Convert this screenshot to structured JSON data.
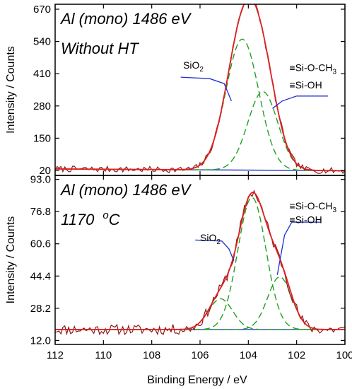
{
  "colors": {
    "raw": "#8b1a1a",
    "fit": "#e02020",
    "component": "#20a020",
    "background": "#2030d0",
    "frame": "#000000"
  },
  "chart_data": [
    {
      "type": "line",
      "name": "top-panel",
      "annotations": [
        "Al (mono) 1486 eV",
        "Without HT"
      ],
      "ylabel": "Intensity / Counts",
      "xlabel": "",
      "xlim": [
        112,
        100
      ],
      "ylim": [
        0,
        690
      ],
      "yticks": [
        20,
        150,
        280,
        410,
        540,
        670
      ],
      "ytick_labels": [
        "20",
        "150",
        "280",
        "410",
        "540",
        "670"
      ],
      "xticks": [
        112,
        110,
        108,
        106,
        104,
        102,
        100
      ],
      "peak_labels": [
        {
          "text_main": "SiO",
          "text_sub": "2",
          "x": 106.7,
          "y": 430
        },
        {
          "text_main": "≡Si-O-CH",
          "text_sub": "3",
          "x": 102.3,
          "y": 420
        },
        {
          "text_main": "≡Si-OH",
          "text_main_only": true,
          "x": 102.3,
          "y": 350
        }
      ],
      "leaders": [
        {
          "label": "SiO2",
          "points": [
            [
              106.8,
              396
            ],
            [
              105.6,
              390
            ],
            [
              105.0,
              370
            ],
            [
              104.7,
              300
            ]
          ]
        },
        {
          "label": "≡Si-OH",
          "points": [
            [
              100.7,
              320
            ],
            [
              102.0,
              320
            ],
            [
              102.6,
              300
            ],
            [
              103.0,
              270
            ]
          ]
        }
      ],
      "baseline": {
        "x": [
          112,
          100
        ],
        "y": [
          26,
          19
        ]
      },
      "components": [
        {
          "center": 104.25,
          "height": 528,
          "sigma": 0.68
        },
        {
          "center": 103.4,
          "height": 317,
          "sigma": 0.62
        }
      ],
      "raw_noise": 12,
      "seed": 7
    },
    {
      "type": "line",
      "name": "bottom-panel",
      "annotations": [
        "Al (mono) 1486 eV",
        "1170  oC"
      ],
      "annotation_parts": {
        "prefix": "1170 ",
        "sup": "o",
        "suffix": "C"
      },
      "ylabel": "Intensity / Counts",
      "xlabel": "Binding Energy / eV",
      "xlim": [
        112,
        100
      ],
      "ylim": [
        10,
        95
      ],
      "yticks": [
        12.0,
        28.2,
        44.4,
        60.6,
        76.8,
        93.0
      ],
      "ytick_labels": [
        "12.0",
        "28.2",
        "44.4",
        "60.6",
        "76.8",
        "93.0"
      ],
      "xticks": [
        112,
        110,
        108,
        106,
        104,
        102,
        100
      ],
      "xtick_labels": [
        "112",
        "110",
        "108",
        "106",
        "104",
        "102",
        "100"
      ],
      "peak_labels": [
        {
          "text_main": "SiO",
          "text_sub": "2",
          "x": 106.0,
          "y": 62
        },
        {
          "text_main": "≡Si-O-CH",
          "text_sub": "3",
          "x": 102.3,
          "y": 78
        },
        {
          "text_main": "≡Si-OH",
          "text_main_only": true,
          "x": 102.3,
          "y": 71
        }
      ],
      "leaders": [
        {
          "label": "SiO2",
          "points": [
            [
              106.2,
              62.5
            ],
            [
              105.1,
              62
            ],
            [
              104.8,
              58
            ],
            [
              104.6,
              52
            ]
          ]
        },
        {
          "label": "≡Si-OH",
          "points": [
            [
              101.0,
              71.5
            ],
            [
              102.2,
              71.5
            ],
            [
              102.5,
              65
            ],
            [
              102.8,
              45
            ]
          ]
        }
      ],
      "baseline": {
        "x": [
          112,
          100
        ],
        "y": [
          17.5,
          17.5
        ]
      },
      "components": [
        {
          "center": 105.15,
          "height": 15.5,
          "sigma": 0.5
        },
        {
          "center": 103.85,
          "height": 66.5,
          "sigma": 0.58
        },
        {
          "center": 102.7,
          "height": 26.5,
          "sigma": 0.5
        }
      ],
      "raw_noise": 2.6,
      "seed": 11
    }
  ]
}
